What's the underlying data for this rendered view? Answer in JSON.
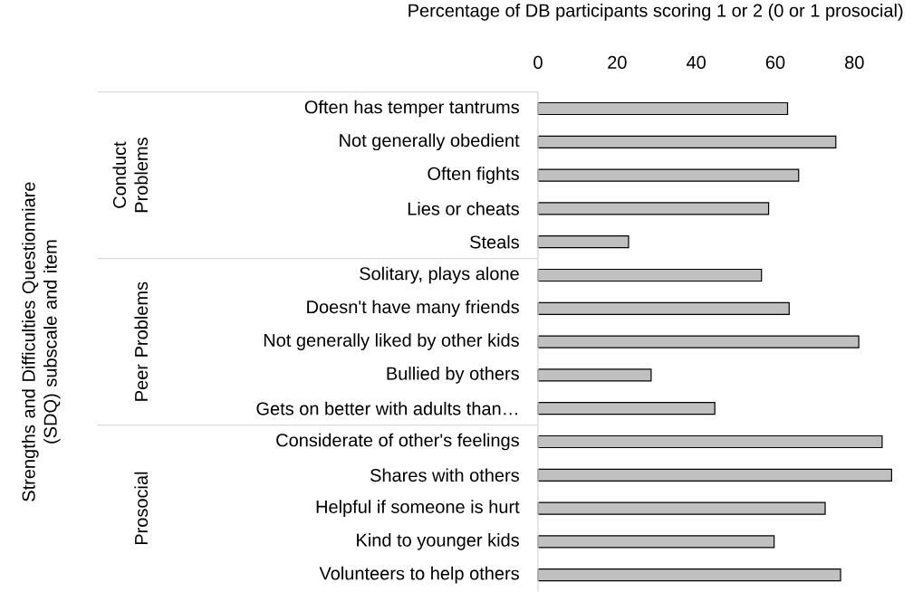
{
  "chart_data": {
    "type": "bar",
    "orientation": "horizontal",
    "xlabel": "Percentage of DB participants scoring 1 or 2 (0 or 1 prosocial)",
    "categories": [
      "Often has temper tantrums",
      "Not generally obedient",
      "Often fights",
      "Lies or cheats",
      "Steals",
      "Solitary, plays alone",
      "Doesn't have many friends",
      "Not generally liked by other kids",
      "Bullied by others",
      "Gets on better with adults than…",
      "Considerate of other's feelings",
      "Shares with others",
      "Helpful if someone is hurt",
      "Kind to younger kids",
      "Volunteers to help others"
    ],
    "values": [
      63.1,
      75.3,
      65.9,
      58.3,
      22.9,
      56.5,
      63.5,
      81.1,
      28.6,
      44.7,
      87.0,
      89.4,
      72.6,
      59.7,
      76.5
    ],
    "color": "#c0c0c0",
    "xlim": [
      0,
      90
    ],
    "xticks": [
      0,
      20,
      40,
      60,
      80
    ],
    "grid": false,
    "annotations": [
      "Conduct Problems",
      "Peer Problems",
      "Prosocial",
      "Strengths and Difficulties Questionniare (SDQ)  subscale and item"
    ]
  }
}
